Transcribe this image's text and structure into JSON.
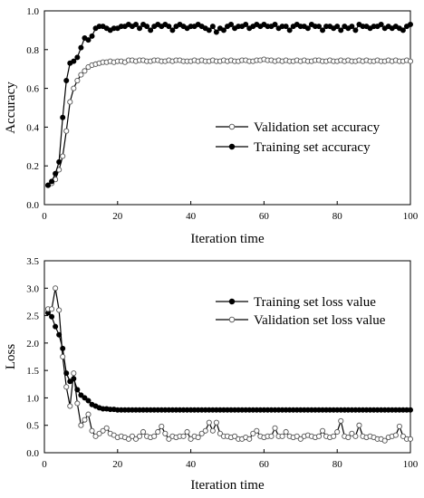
{
  "chart_data": [
    {
      "type": "line",
      "xlabel": "Iteration time",
      "ylabel": "Accuracy",
      "xlim": [
        0,
        100
      ],
      "ylim": [
        0,
        1.0
      ],
      "xticks": [
        "0",
        "20",
        "40",
        "60",
        "80",
        "100"
      ],
      "yticks": [
        "0.0",
        "0.2",
        "0.4",
        "0.6",
        "0.8",
        "1.0"
      ],
      "legend_position": "center-right",
      "series": [
        {
          "name": "Validation set accuracy",
          "marker": "open-circle",
          "x": [
            1,
            2,
            3,
            4,
            5,
            6,
            7,
            8,
            9,
            10,
            11,
            12,
            13,
            14,
            15,
            16,
            17,
            18,
            19,
            20,
            21,
            22,
            23,
            24,
            25,
            26,
            27,
            28,
            29,
            30,
            31,
            32,
            33,
            34,
            35,
            36,
            37,
            38,
            39,
            40,
            41,
            42,
            43,
            44,
            45,
            46,
            47,
            48,
            49,
            50,
            51,
            52,
            53,
            54,
            55,
            56,
            57,
            58,
            59,
            60,
            61,
            62,
            63,
            64,
            65,
            66,
            67,
            68,
            69,
            70,
            71,
            72,
            73,
            74,
            75,
            76,
            77,
            78,
            79,
            80,
            81,
            82,
            83,
            84,
            85,
            86,
            87,
            88,
            89,
            90,
            91,
            92,
            93,
            94,
            95,
            96,
            97,
            98,
            99,
            100
          ],
          "values": [
            0.1,
            0.11,
            0.13,
            0.18,
            0.25,
            0.38,
            0.53,
            0.6,
            0.64,
            0.67,
            0.69,
            0.71,
            0.72,
            0.725,
            0.73,
            0.735,
            0.735,
            0.74,
            0.735,
            0.74,
            0.74,
            0.735,
            0.745,
            0.745,
            0.74,
            0.745,
            0.745,
            0.74,
            0.74,
            0.745,
            0.745,
            0.74,
            0.74,
            0.745,
            0.74,
            0.745,
            0.745,
            0.74,
            0.74,
            0.74,
            0.745,
            0.74,
            0.745,
            0.74,
            0.74,
            0.745,
            0.74,
            0.74,
            0.745,
            0.74,
            0.745,
            0.74,
            0.74,
            0.745,
            0.745,
            0.74,
            0.74,
            0.745,
            0.745,
            0.75,
            0.745,
            0.745,
            0.74,
            0.745,
            0.74,
            0.745,
            0.74,
            0.74,
            0.745,
            0.74,
            0.745,
            0.74,
            0.74,
            0.745,
            0.745,
            0.74,
            0.74,
            0.745,
            0.74,
            0.74,
            0.745,
            0.74,
            0.745,
            0.74,
            0.74,
            0.745,
            0.74,
            0.745,
            0.74,
            0.74,
            0.745,
            0.74,
            0.74,
            0.745,
            0.74,
            0.745,
            0.74,
            0.74,
            0.745,
            0.74
          ]
        },
        {
          "name": "Training set accuracy",
          "marker": "filled-circle",
          "x": [
            1,
            2,
            3,
            4,
            5,
            6,
            7,
            8,
            9,
            10,
            11,
            12,
            13,
            14,
            15,
            16,
            17,
            18,
            19,
            20,
            21,
            22,
            23,
            24,
            25,
            26,
            27,
            28,
            29,
            30,
            31,
            32,
            33,
            34,
            35,
            36,
            37,
            38,
            39,
            40,
            41,
            42,
            43,
            44,
            45,
            46,
            47,
            48,
            49,
            50,
            51,
            52,
            53,
            54,
            55,
            56,
            57,
            58,
            59,
            60,
            61,
            62,
            63,
            64,
            65,
            66,
            67,
            68,
            69,
            70,
            71,
            72,
            73,
            74,
            75,
            76,
            77,
            78,
            79,
            80,
            81,
            82,
            83,
            84,
            85,
            86,
            87,
            88,
            89,
            90,
            91,
            92,
            93,
            94,
            95,
            96,
            97,
            98,
            99,
            100
          ],
          "values": [
            0.1,
            0.12,
            0.16,
            0.22,
            0.45,
            0.64,
            0.73,
            0.74,
            0.76,
            0.81,
            0.86,
            0.85,
            0.87,
            0.91,
            0.92,
            0.92,
            0.91,
            0.9,
            0.91,
            0.91,
            0.92,
            0.92,
            0.93,
            0.92,
            0.93,
            0.91,
            0.93,
            0.92,
            0.9,
            0.92,
            0.93,
            0.92,
            0.93,
            0.92,
            0.9,
            0.92,
            0.93,
            0.92,
            0.91,
            0.92,
            0.92,
            0.93,
            0.92,
            0.91,
            0.9,
            0.92,
            0.89,
            0.91,
            0.9,
            0.92,
            0.93,
            0.91,
            0.92,
            0.92,
            0.93,
            0.91,
            0.92,
            0.93,
            0.92,
            0.93,
            0.92,
            0.92,
            0.93,
            0.91,
            0.92,
            0.92,
            0.9,
            0.92,
            0.93,
            0.92,
            0.92,
            0.91,
            0.93,
            0.92,
            0.92,
            0.9,
            0.92,
            0.92,
            0.91,
            0.92,
            0.9,
            0.92,
            0.91,
            0.92,
            0.9,
            0.93,
            0.92,
            0.92,
            0.91,
            0.92,
            0.92,
            0.93,
            0.91,
            0.92,
            0.91,
            0.92,
            0.91,
            0.9,
            0.92,
            0.93
          ]
        }
      ]
    },
    {
      "type": "line",
      "xlabel": "Iteration time",
      "ylabel": "Loss",
      "xlim": [
        0,
        100
      ],
      "ylim": [
        0,
        3.5
      ],
      "xticks": [
        "0",
        "20",
        "40",
        "60",
        "80",
        "100"
      ],
      "yticks": [
        "0.0",
        "0.5",
        "1.0",
        "1.5",
        "2.0",
        "2.5",
        "3.0",
        "3.5"
      ],
      "legend_position": "top-right",
      "series": [
        {
          "name": "Training set loss value",
          "marker": "filled-circle",
          "x": [
            1,
            2,
            3,
            4,
            5,
            6,
            7,
            8,
            9,
            10,
            11,
            12,
            13,
            14,
            15,
            16,
            17,
            18,
            19,
            20,
            21,
            22,
            23,
            24,
            25,
            26,
            27,
            28,
            29,
            30,
            31,
            32,
            33,
            34,
            35,
            36,
            37,
            38,
            39,
            40,
            41,
            42,
            43,
            44,
            45,
            46,
            47,
            48,
            49,
            50,
            51,
            52,
            53,
            54,
            55,
            56,
            57,
            58,
            59,
            60,
            61,
            62,
            63,
            64,
            65,
            66,
            67,
            68,
            69,
            70,
            71,
            72,
            73,
            74,
            75,
            76,
            77,
            78,
            79,
            80,
            81,
            82,
            83,
            84,
            85,
            86,
            87,
            88,
            89,
            90,
            91,
            92,
            93,
            94,
            95,
            96,
            97,
            98,
            99,
            100
          ],
          "values": [
            2.55,
            2.48,
            2.3,
            2.15,
            1.9,
            1.45,
            1.3,
            1.35,
            1.15,
            1.05,
            1.0,
            0.95,
            0.88,
            0.85,
            0.82,
            0.8,
            0.8,
            0.79,
            0.79,
            0.78,
            0.78,
            0.78,
            0.78,
            0.78,
            0.78,
            0.78,
            0.78,
            0.78,
            0.78,
            0.78,
            0.78,
            0.78,
            0.78,
            0.78,
            0.78,
            0.78,
            0.78,
            0.78,
            0.78,
            0.78,
            0.78,
            0.78,
            0.78,
            0.78,
            0.78,
            0.78,
            0.78,
            0.78,
            0.78,
            0.78,
            0.78,
            0.78,
            0.78,
            0.78,
            0.78,
            0.78,
            0.78,
            0.78,
            0.78,
            0.78,
            0.78,
            0.78,
            0.78,
            0.78,
            0.78,
            0.78,
            0.78,
            0.78,
            0.78,
            0.78,
            0.78,
            0.78,
            0.78,
            0.78,
            0.78,
            0.78,
            0.78,
            0.78,
            0.78,
            0.78,
            0.78,
            0.78,
            0.78,
            0.78,
            0.78,
            0.78,
            0.78,
            0.78,
            0.78,
            0.78,
            0.78,
            0.78,
            0.78,
            0.78,
            0.78,
            0.78,
            0.78,
            0.78,
            0.78,
            0.78
          ]
        },
        {
          "name": "Validation set loss value",
          "marker": "open-circle",
          "x": [
            1,
            2,
            3,
            4,
            5,
            6,
            7,
            8,
            9,
            10,
            11,
            12,
            13,
            14,
            15,
            16,
            17,
            18,
            19,
            20,
            21,
            22,
            23,
            24,
            25,
            26,
            27,
            28,
            29,
            30,
            31,
            32,
            33,
            34,
            35,
            36,
            37,
            38,
            39,
            40,
            41,
            42,
            43,
            44,
            45,
            46,
            47,
            48,
            49,
            50,
            51,
            52,
            53,
            54,
            55,
            56,
            57,
            58,
            59,
            60,
            61,
            62,
            63,
            64,
            65,
            66,
            67,
            68,
            69,
            70,
            71,
            72,
            73,
            74,
            75,
            76,
            77,
            78,
            79,
            80,
            81,
            82,
            83,
            84,
            85,
            86,
            87,
            88,
            89,
            90,
            91,
            92,
            93,
            94,
            95,
            96,
            97,
            98,
            99,
            100
          ],
          "values": [
            2.62,
            2.62,
            3.0,
            2.6,
            1.75,
            1.2,
            0.85,
            1.45,
            0.9,
            0.5,
            0.6,
            0.7,
            0.4,
            0.3,
            0.35,
            0.4,
            0.45,
            0.35,
            0.32,
            0.28,
            0.3,
            0.28,
            0.25,
            0.3,
            0.25,
            0.3,
            0.38,
            0.3,
            0.28,
            0.3,
            0.38,
            0.48,
            0.35,
            0.25,
            0.3,
            0.28,
            0.3,
            0.3,
            0.38,
            0.25,
            0.3,
            0.28,
            0.35,
            0.4,
            0.55,
            0.4,
            0.55,
            0.35,
            0.3,
            0.3,
            0.28,
            0.3,
            0.25,
            0.25,
            0.28,
            0.25,
            0.35,
            0.4,
            0.3,
            0.28,
            0.3,
            0.3,
            0.45,
            0.3,
            0.3,
            0.38,
            0.3,
            0.28,
            0.3,
            0.25,
            0.3,
            0.32,
            0.3,
            0.28,
            0.3,
            0.4,
            0.3,
            0.28,
            0.3,
            0.38,
            0.58,
            0.3,
            0.28,
            0.35,
            0.3,
            0.5,
            0.3,
            0.28,
            0.3,
            0.28,
            0.25,
            0.25,
            0.22,
            0.28,
            0.3,
            0.32,
            0.48,
            0.3,
            0.25,
            0.25
          ]
        }
      ]
    }
  ]
}
